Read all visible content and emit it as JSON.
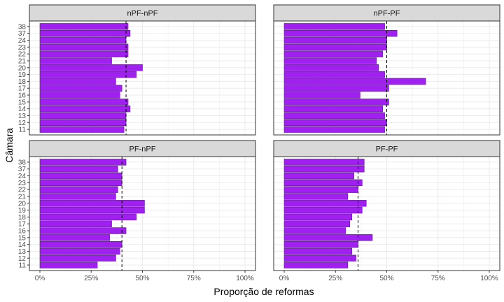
{
  "chart_data": {
    "type": "bar",
    "orientation": "horizontal",
    "facet_layout": "2x2 grid",
    "xlabel": "Proporção de reformas",
    "ylabel": "Câmara",
    "x_ticks": [
      "0%",
      "25%",
      "50%",
      "75%",
      "100%"
    ],
    "xlim": [
      0,
      1
    ],
    "categories": [
      "38",
      "37",
      "24",
      "23",
      "22",
      "21",
      "20",
      "19",
      "18",
      "17",
      "16",
      "15",
      "14",
      "13",
      "12",
      "11"
    ],
    "bar_color": "#a020f0",
    "bar_edge_color": "#5a1a8a",
    "panels": [
      {
        "title": "nPF-nPF",
        "values": [
          0.43,
          0.44,
          0.42,
          0.43,
          0.43,
          0.35,
          0.5,
          0.47,
          0.37,
          0.4,
          0.39,
          0.43,
          0.44,
          0.42,
          0.42,
          0.41
        ],
        "reference_line": 0.42
      },
      {
        "title": "nPF-PF",
        "values": [
          0.49,
          0.55,
          0.5,
          0.5,
          0.48,
          0.45,
          0.46,
          0.49,
          0.69,
          0.51,
          0.37,
          0.51,
          0.48,
          0.49,
          0.5,
          0.49
        ],
        "reference_line": 0.5
      },
      {
        "title": "PF-nPF",
        "values": [
          0.42,
          0.38,
          0.4,
          0.4,
          0.38,
          0.37,
          0.51,
          0.51,
          0.47,
          0.35,
          0.42,
          0.34,
          0.4,
          0.39,
          0.37,
          0.28
        ],
        "reference_line": 0.4
      },
      {
        "title": "PF-PF",
        "values": [
          0.39,
          0.39,
          0.34,
          0.38,
          0.36,
          0.31,
          0.4,
          0.38,
          0.33,
          0.32,
          0.3,
          0.43,
          0.36,
          0.33,
          0.35,
          0.31
        ],
        "reference_line": 0.36
      }
    ]
  }
}
